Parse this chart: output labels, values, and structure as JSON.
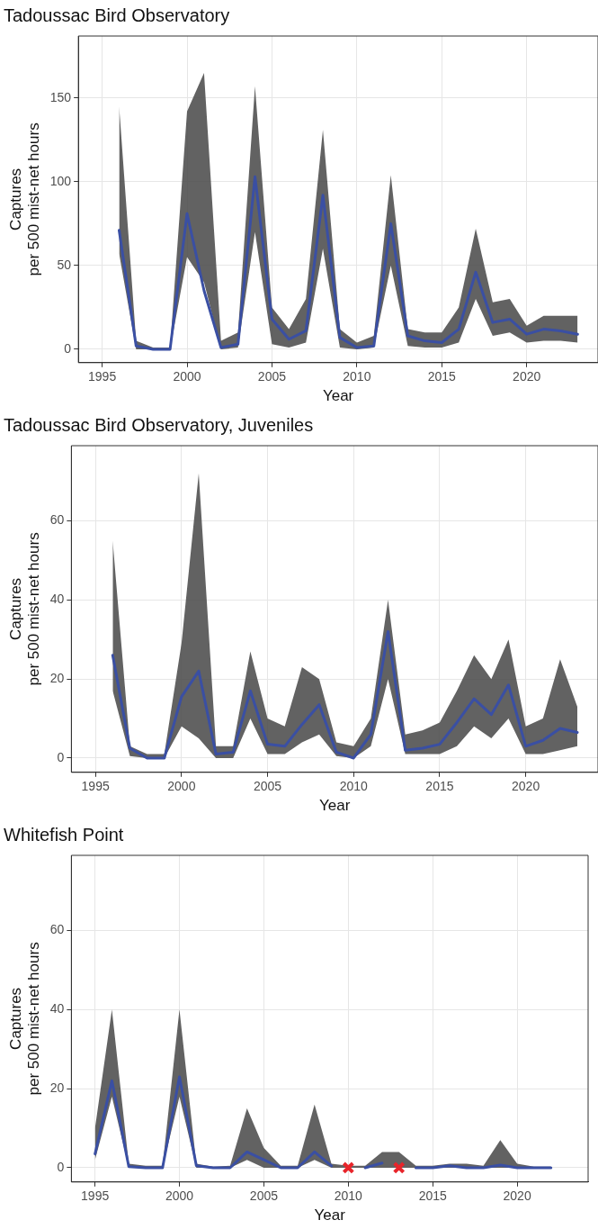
{
  "chart_data": [
    {
      "type": "line",
      "title": "Tadoussac Bird Observatory",
      "xlabel": "Year",
      "ylabel": "Captures\nper 500 mist-net hours",
      "xlim": [
        1993.6,
        2024.2
      ],
      "xticks": [
        1995,
        2000,
        2005,
        2010,
        2015,
        2020
      ],
      "ylim": [
        -8,
        187
      ],
      "yticks": [
        0,
        50,
        100,
        150
      ],
      "grid": true,
      "legend": false,
      "marker": "none",
      "line_style": "solid",
      "x": [
        1996,
        1997,
        1998,
        1999,
        2000,
        2001,
        2002,
        2003,
        2004,
        2005,
        2006,
        2007,
        2008,
        2009,
        2010,
        2011,
        2012,
        2013,
        2014,
        2015,
        2016,
        2017,
        2018,
        2019,
        2020,
        2021,
        2022,
        2023
      ],
      "series": [
        {
          "color": "#3a4fa3",
          "values": [
            71,
            2,
            0,
            0,
            81,
            35,
            1,
            3,
            103,
            18,
            6,
            11,
            92,
            7,
            1,
            2,
            75,
            8,
            5,
            4,
            12,
            46,
            16,
            18,
            9,
            12,
            11,
            9
          ],
          "lower": [
            57,
            0,
            0,
            0,
            55,
            40,
            0,
            1,
            70,
            3,
            1,
            4,
            60,
            1,
            0,
            1,
            50,
            2,
            1,
            1,
            4,
            30,
            8,
            10,
            4,
            5,
            5,
            4
          ],
          "upper": [
            145,
            5,
            1,
            1,
            142,
            165,
            5,
            10,
            157,
            25,
            12,
            30,
            131,
            12,
            4,
            8,
            104,
            12,
            10,
            10,
            25,
            72,
            28,
            30,
            14,
            20,
            20,
            20
          ]
        }
      ]
    },
    {
      "type": "line",
      "title": "Tadoussac Bird Observatory, Juveniles",
      "xlabel": "Year",
      "ylabel": "Captures\nper 500 mist-net hours",
      "xlim": [
        1993.6,
        2024.2
      ],
      "xticks": [
        1995,
        2000,
        2005,
        2010,
        2015,
        2020
      ],
      "ylim": [
        -3.6,
        79
      ],
      "yticks": [
        0,
        20,
        40,
        60
      ],
      "grid": true,
      "legend": false,
      "marker": "none",
      "line_style": "solid",
      "x": [
        1996,
        1997,
        1998,
        1999,
        2000,
        2001,
        2002,
        2003,
        2004,
        2005,
        2006,
        2007,
        2008,
        2009,
        2010,
        2011,
        2012,
        2013,
        2014,
        2015,
        2016,
        2017,
        2018,
        2019,
        2020,
        2021,
        2022,
        2023
      ],
      "series": [
        {
          "color": "#3a4fa3",
          "values": [
            26,
            2.5,
            0,
            0,
            15.5,
            22,
            1,
            1.5,
            17,
            3.5,
            3,
            8.5,
            13.5,
            1.5,
            0,
            6,
            32,
            2,
            2.5,
            3.5,
            9,
            15,
            11,
            18.5,
            3,
            4.5,
            7.5,
            6.5
          ],
          "lower": [
            17,
            0.5,
            0,
            0,
            8,
            5,
            0,
            0,
            10,
            1,
            1,
            4,
            6,
            0.5,
            0,
            3,
            20,
            1,
            1,
            1,
            3,
            8,
            5,
            10,
            1,
            1,
            2,
            3
          ],
          "upper": [
            55,
            3,
            1,
            1,
            29,
            72,
            3,
            3,
            27,
            10,
            8,
            23,
            20,
            4,
            3,
            10,
            40,
            6,
            7,
            9,
            17,
            26,
            20,
            30,
            8,
            10,
            25,
            13
          ]
        }
      ]
    },
    {
      "type": "line",
      "title": "Whitefish Point",
      "xlabel": "Year",
      "ylabel": "Captures\nper 500 mist-net hours",
      "xlim": [
        1993.6,
        2024.2
      ],
      "xticks": [
        1995,
        2000,
        2005,
        2010,
        2015,
        2020
      ],
      "ylim": [
        -3.6,
        79
      ],
      "yticks": [
        0,
        20,
        40,
        60
      ],
      "grid": true,
      "legend": false,
      "marker": "none",
      "line_style": "solid",
      "x": [
        1995,
        1996,
        1997,
        1998,
        1999,
        2000,
        2001,
        2002,
        2003,
        2004,
        2005,
        2006,
        2007,
        2008,
        2009,
        2010,
        2011,
        2012,
        2013,
        2014,
        2015,
        2016,
        2017,
        2018,
        2019,
        2020,
        2021,
        2022
      ],
      "series": [
        {
          "color": "#3a4fa3",
          "values": [
            3.5,
            22,
            0.3,
            0,
            0,
            23,
            0.5,
            0,
            0,
            4,
            2,
            0,
            0,
            4,
            0.5,
            null,
            0,
            1.2,
            null,
            0,
            0,
            0.5,
            0,
            0,
            0.7,
            0,
            0,
            0
          ],
          "lower": [
            2,
            18,
            0,
            0,
            0,
            18,
            0,
            0,
            0,
            2,
            0,
            0,
            0,
            2,
            0,
            0,
            0,
            0,
            0,
            0,
            0,
            0,
            0,
            0,
            0,
            0,
            0,
            0
          ],
          "upper": [
            10,
            40,
            1,
            0.5,
            0.5,
            40,
            1,
            0.3,
            0.5,
            15,
            5,
            0.5,
            0.5,
            16,
            1,
            0.5,
            0.5,
            4,
            4,
            0.5,
            0.5,
            1,
            1,
            0.5,
            7,
            1,
            0.3,
            0.3
          ]
        },
        {
          "type": "scatter",
          "color": "#e8242a",
          "marker": "cross",
          "x": [
            2010,
            2013
          ],
          "values": [
            0,
            0
          ]
        }
      ]
    }
  ]
}
